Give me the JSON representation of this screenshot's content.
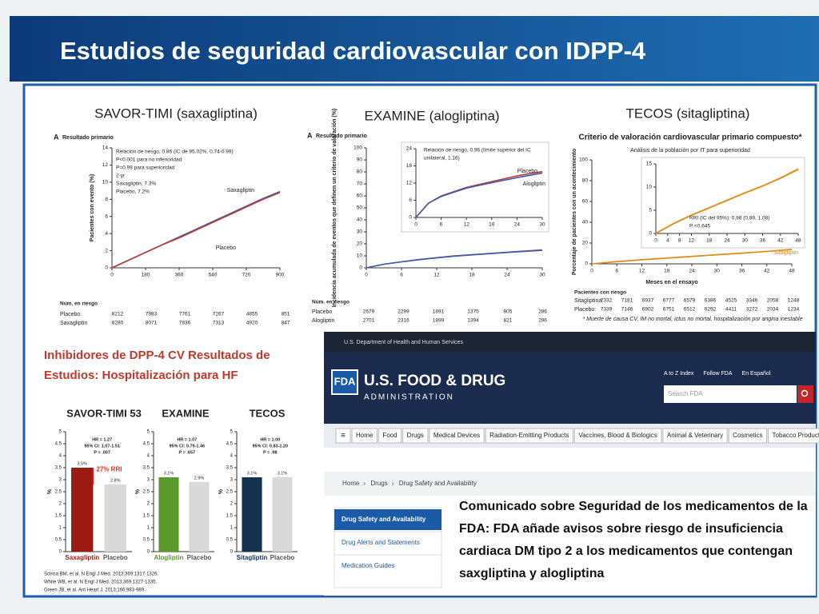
{
  "slide": {
    "title": "Estudios de seguridad cardiovascular con IDPP-4",
    "hf_title": "Inhibidores de DPP-4 CV Resultados de Estudios: Hospitalización para HF",
    "references": [
      "Scirica BM, et al. N Engl J Med. 2013;369:1317-1326.",
      "White WB, et al. N Engl J Med. 2013;369:1327-1335.",
      "Green JB, et al. Am Heart J. 2013;166:983-989."
    ]
  },
  "chart_data": [
    {
      "type": "line",
      "title": "SAVOR-TIMI (saxagliptina)",
      "panel": "A",
      "subtitle": "Resultado primario",
      "ylabel": "Pacientes con evento (%)",
      "annotations": [
        "Relación de riesgo, 0.86 (IC de 95.02%, 0.74-0.99)",
        "P<0.001 para no inferioridad",
        "P=0.99 para superioridad",
        "2-yr",
        "Saxagliptin, 7.3%",
        "Placebo, 7.2%"
      ],
      "x": [
        0,
        90,
        180,
        270,
        360,
        450,
        540,
        630,
        720,
        810,
        900
      ],
      "series": [
        {
          "name": "Saxagliptin",
          "color": "#3a5bbf",
          "values": [
            0,
            0.9,
            1.8,
            2.7,
            3.6,
            4.5,
            5.4,
            6.3,
            7.2,
            8.1,
            8.9
          ]
        },
        {
          "name": "Placebo",
          "color": "#c0392b",
          "values": [
            0,
            0.9,
            1.8,
            2.7,
            3.5,
            4.4,
            5.3,
            6.2,
            7.1,
            8.0,
            8.8
          ]
        }
      ],
      "xlim": [
        0,
        900
      ],
      "xticks": [
        0,
        180,
        360,
        540,
        720,
        900
      ],
      "ylim": [
        0,
        14
      ],
      "yticks": [
        0,
        2,
        4,
        6,
        8,
        10,
        12,
        14
      ]
    },
    {
      "type": "line",
      "title": "EXAMINE (alogliptina)",
      "panel": "A",
      "subtitle": "Resultado primario",
      "ylabel": "Incidencia acumulada de eventos que definen un criterio de valoración (%)",
      "x": [
        0,
        3,
        6,
        9,
        12,
        15,
        18,
        21,
        24,
        27,
        30
      ],
      "series": [
        {
          "name": "Placebo",
          "color": "#c0392b",
          "values": [
            0,
            3,
            5,
            7,
            8.5,
            10,
            11,
            12,
            13,
            14,
            15
          ]
        },
        {
          "name": "Alogliptin",
          "color": "#3a5bbf",
          "values": [
            0,
            3,
            5,
            6.8,
            8.3,
            9.7,
            10.8,
            11.8,
            12.8,
            13.7,
            14.6
          ]
        }
      ],
      "xlim": [
        0,
        30
      ],
      "xticks": [
        0,
        6,
        12,
        18,
        24,
        30
      ],
      "ylim": [
        0,
        100
      ],
      "yticks": [
        0,
        10,
        20,
        30,
        40,
        50,
        60,
        70,
        80,
        90,
        100
      ]
    },
    {
      "type": "line",
      "annotations": [
        "Relación de riesgo, 0.96 (límite superior del IC",
        "unilateral, 1.16)"
      ],
      "x": [
        0,
        3,
        6,
        9,
        12,
        15,
        18,
        21,
        24,
        27,
        30
      ],
      "series": [
        {
          "name": "Placebo",
          "color": "#c0392b",
          "values": [
            0,
            5,
            7.5,
            9,
            10.5,
            11.5,
            12.5,
            13.5,
            14.5,
            15.3,
            16
          ]
        },
        {
          "name": "Alogliptin",
          "color": "#3a5bbf",
          "values": [
            0,
            5,
            7.3,
            8.8,
            10.2,
            11.2,
            12.1,
            13,
            13.9,
            14.7,
            15.5
          ]
        }
      ],
      "xlim": [
        0,
        30
      ],
      "xticks": [
        0,
        6,
        12,
        18,
        24,
        30
      ],
      "ylim": [
        0,
        24
      ],
      "yticks": [
        0,
        6,
        12,
        18,
        24
      ]
    },
    {
      "type": "line",
      "title": "TECOS (sitagliptina)",
      "subtitle": "Criterio de valoración cardiovascular primario compuesto*",
      "note": "Análisis de la población por IT para superioridad",
      "ylabel": "Porcentaje de pacientes con un acontecimiento",
      "xlabel": "Meses en el ensayo",
      "x": [
        0,
        6,
        12,
        18,
        24,
        30,
        36,
        42,
        48
      ],
      "series": [
        {
          "name": "Placebo",
          "color": "#f0b440",
          "values": [
            0,
            2.2,
            4,
            5.6,
            7.2,
            8.8,
            10.3,
            12,
            14
          ]
        },
        {
          "name": "Sitagliptin",
          "color": "#e08a1e",
          "values": [
            0,
            2.1,
            3.9,
            5.5,
            7.1,
            8.7,
            10.2,
            11.9,
            13.8
          ]
        }
      ],
      "xlim": [
        0,
        48
      ],
      "xticks": [
        0,
        6,
        12,
        18,
        24,
        30,
        36,
        42,
        48
      ],
      "ylim": [
        0,
        100
      ],
      "yticks": [
        0,
        20,
        40,
        60,
        80,
        100
      ]
    },
    {
      "type": "line",
      "annotations": [
        "RRI (IC del 95%): 0,98 (0,89, 1,08)",
        "P <0,645"
      ],
      "x": [
        0,
        6,
        12,
        18,
        24,
        30,
        36,
        42,
        48
      ],
      "series": [
        {
          "name": "Placebo",
          "color": "#f0b440",
          "values": [
            0,
            2.2,
            4,
            5.6,
            7.2,
            8.8,
            10.3,
            12,
            14
          ]
        },
        {
          "name": "Sitagliptin",
          "color": "#e08a1e",
          "values": [
            0,
            2.1,
            3.9,
            5.5,
            7.1,
            8.7,
            10.2,
            11.9,
            13.8
          ]
        }
      ],
      "xlim": [
        0,
        48
      ],
      "xticks": [
        0,
        4,
        8,
        12,
        18,
        24,
        30,
        36,
        42,
        48
      ],
      "ylim": [
        0,
        15
      ],
      "yticks": [
        0,
        5,
        10,
        15
      ]
    },
    {
      "type": "bar",
      "title": "SAVOR-TIMI 53",
      "ylabel": "%",
      "categories": [
        "Saxagliptin",
        "Placebo"
      ],
      "values": [
        3.5,
        2.8
      ],
      "value_labels": [
        "3.5%",
        "2.8%"
      ],
      "colors": [
        "#9b1b13",
        "#d9d9d9"
      ],
      "annotations": [
        "HR = 1.27",
        "95% CI: 1.07-1.51",
        "P = .007"
      ],
      "callout": "27% RRI",
      "ylim": [
        0,
        5
      ],
      "yticks": [
        0,
        0.5,
        1,
        1.5,
        2,
        2.5,
        3,
        3.5,
        4,
        4.5,
        5
      ]
    },
    {
      "type": "bar",
      "title": "EXAMINE",
      "ylabel": "%",
      "categories": [
        "Alogliptin",
        "Placebo"
      ],
      "values": [
        3.1,
        2.9
      ],
      "value_labels": [
        "3.1%",
        "2.9%"
      ],
      "colors": [
        "#5a9a2a",
        "#d9d9d9"
      ],
      "annotations": [
        "HR = 1.07",
        "95% CI: 0.79-1.46",
        "P = .657"
      ],
      "ylim": [
        0,
        5
      ],
      "yticks": [
        0,
        0.5,
        1,
        1.5,
        2,
        2.5,
        3,
        3.5,
        4,
        4.5,
        5
      ]
    },
    {
      "type": "bar",
      "title": "TECOS",
      "ylabel": "%",
      "categories": [
        "Sitagliptin",
        "Placebo"
      ],
      "values": [
        3.1,
        3.1
      ],
      "value_labels": [
        "3.1%",
        "3.1%"
      ],
      "colors": [
        "#14324f",
        "#d9d9d9"
      ],
      "annotations": [
        "HR = 1.00",
        "95% CI: 0.83-1.20",
        "P = .98"
      ],
      "ylim": [
        0,
        5
      ],
      "yticks": [
        0,
        0.5,
        1,
        1.5,
        2,
        2.5,
        3,
        3.5,
        4,
        4.5,
        5
      ]
    }
  ],
  "risk_tables": [
    {
      "title": "Núm. en riesgo",
      "rows": [
        {
          "name": "Placebo",
          "values": [
            8212,
            7983,
            7761,
            7267,
            4855,
            851
          ]
        },
        {
          "name": "Saxagliptin",
          "values": [
            8280,
            8071,
            7836,
            7313,
            4920,
            847
          ]
        }
      ]
    },
    {
      "title": "Núm. en riesgo",
      "rows": [
        {
          "name": "Placebo",
          "values": [
            2679,
            2299,
            1891,
            1375,
            805,
            286
          ]
        },
        {
          "name": "Alogliptin",
          "values": [
            2701,
            2316,
            1899,
            1394,
            821,
            296
          ]
        }
      ]
    },
    {
      "title": "Pacientes con riesgo",
      "rows": [
        {
          "name": "Sitagliptina:",
          "values": [
            7332,
            7181,
            6937,
            6777,
            6579,
            6386,
            4525,
            3346,
            2058,
            1248
          ]
        },
        {
          "name": "Placebo:",
          "values": [
            7339,
            7146,
            6902,
            6751,
            6512,
            6292,
            4411,
            3272,
            2034,
            1234
          ]
        }
      ]
    }
  ],
  "tecos_footnote": "* Muerte de causa CV, IM no mortal, ictus no mortal, hospitalización por angina inestable",
  "fda": {
    "top_bar": "U.S. Department of Health and Human Services",
    "logo": "FDA",
    "name": "U.S. FOOD & DRUG",
    "name2": "ADMINISTRATION",
    "links": [
      "A to Z Index",
      "Follow FDA",
      "En Español"
    ],
    "search": "Search FDA",
    "nav": [
      "Home",
      "Food",
      "Drugs",
      "Medical Devices",
      "Radiation-Emitting Products",
      "Vaccines, Blood & Biologics",
      "Animal & Veterinary",
      "Cosmetics",
      "Tobacco Products"
    ],
    "breadcrumb": [
      "Home",
      "Drugs",
      "Drug Safety and Availability"
    ],
    "sidebar": [
      "Drug Safety and Availability",
      "Drug Alerts and Statements",
      "Medication Guides"
    ],
    "headline": "Comunicado sobre Seguridad de los medicamentos de la FDA: FDA añade avisos sobre riesgo de insuficiencia cardiaca DM tipo 2 a los medicamentos que contengan saxgliptina y alogliptina"
  }
}
